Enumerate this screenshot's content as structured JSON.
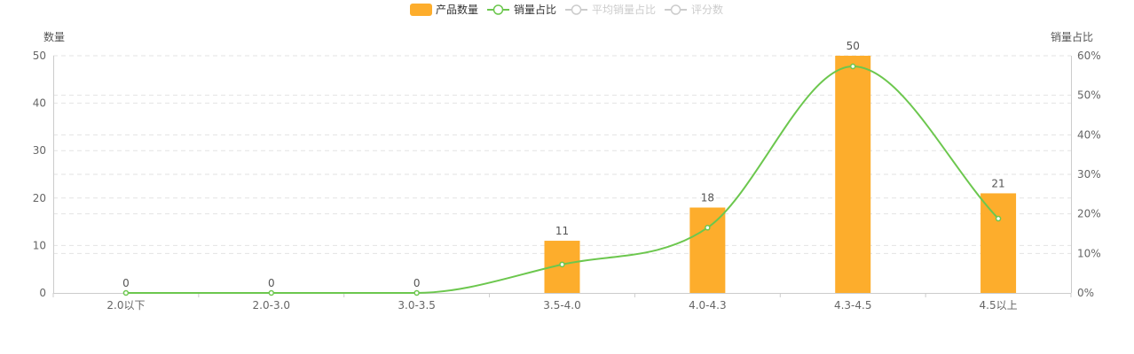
{
  "colors": {
    "bar": "#FDAD2C",
    "line": "#6CC74E",
    "inactive": "#CCCCCC",
    "grid": "#E3E3E3",
    "axis": "#CCCCCC"
  },
  "legend": {
    "items": [
      {
        "label": "产品数量",
        "icon": "bar-swatch-icon",
        "active": true
      },
      {
        "label": "销量占比",
        "icon": "line-circle-icon",
        "active": true
      },
      {
        "label": "平均销量占比",
        "icon": "line-circle-icon",
        "active": false
      },
      {
        "label": "评分数",
        "icon": "line-circle-icon",
        "active": false
      }
    ]
  },
  "chart_data": {
    "type": "bar",
    "categories": [
      "2.0以下",
      "2.0-3.0",
      "3.0-3.5",
      "3.5-4.0",
      "4.0-4.3",
      "4.3-4.5",
      "4.5以上"
    ],
    "series": [
      {
        "name": "产品数量",
        "type": "bar",
        "axis": "left",
        "values": [
          0,
          0,
          0,
          11,
          18,
          50,
          21
        ]
      },
      {
        "name": "销量占比",
        "type": "line",
        "axis": "right",
        "smooth": true,
        "values": [
          0,
          0,
          0,
          7.2,
          16.5,
          57.3,
          18.8
        ]
      }
    ],
    "ylabel": "数量",
    "y2label": "销量占比",
    "ylim": [
      0,
      50
    ],
    "y2lim": [
      0,
      60
    ],
    "yticks": [
      "0",
      "10",
      "20",
      "30",
      "40",
      "50"
    ],
    "y2ticks": [
      "0%",
      "10%",
      "20%",
      "30%",
      "40%",
      "50%",
      "60%"
    ],
    "grid": true,
    "legend_position": "top-center"
  }
}
